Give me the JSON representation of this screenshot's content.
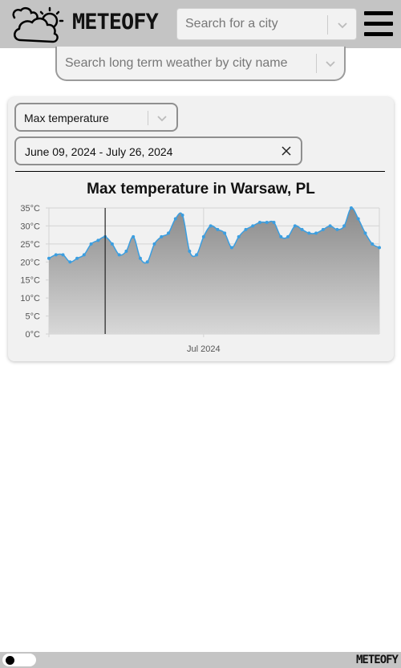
{
  "header": {
    "logo_text": "METEOFY",
    "logo_icon": "cloud-sun-icon",
    "city_search": {
      "placeholder": "Search for a city",
      "value": ""
    },
    "menu_icon": "hamburger-menu-icon"
  },
  "long_term_search": {
    "placeholder": "Search long term weather by city name",
    "value": ""
  },
  "card": {
    "metric_select": {
      "value": "Max temperature"
    },
    "date_range": {
      "value": "June 09, 2024 - July 26, 2024"
    },
    "chart_title": "Max temperature in Warsaw, PL"
  },
  "chart_data": {
    "type": "area",
    "title": "Max temperature in Warsaw, PL",
    "x_start": "2024-06-09",
    "x_end": "2024-07-26",
    "x_tick_labels": [
      {
        "label": "Jul 2024",
        "date": "2024-07-01"
      }
    ],
    "y_tick_labels": [
      "0°C",
      "5°C",
      "10°C",
      "15°C",
      "20°C",
      "25°C",
      "30°C",
      "35°C"
    ],
    "ylim": [
      0,
      35
    ],
    "unit": "°C",
    "grid": true,
    "crosshair_date": "2024-06-17",
    "colors": {
      "line": "#3b9ee0",
      "area_top": "#8a8a8a",
      "area_bottom": "#d8d8d8"
    },
    "series": [
      {
        "values": [
          21,
          22,
          22,
          20,
          21,
          22,
          25,
          26,
          27,
          25,
          22,
          23,
          27,
          21,
          20,
          25,
          27,
          28,
          32,
          33,
          23,
          22,
          27,
          30,
          29,
          28,
          24,
          27,
          29,
          30,
          31,
          31,
          31,
          27,
          27,
          30,
          29,
          28,
          28,
          29,
          30,
          29,
          30,
          35,
          32,
          28,
          25,
          24
        ]
      }
    ]
  },
  "footer": {
    "logo_text": "METEOFY",
    "theme_toggle": "theme-toggle"
  }
}
